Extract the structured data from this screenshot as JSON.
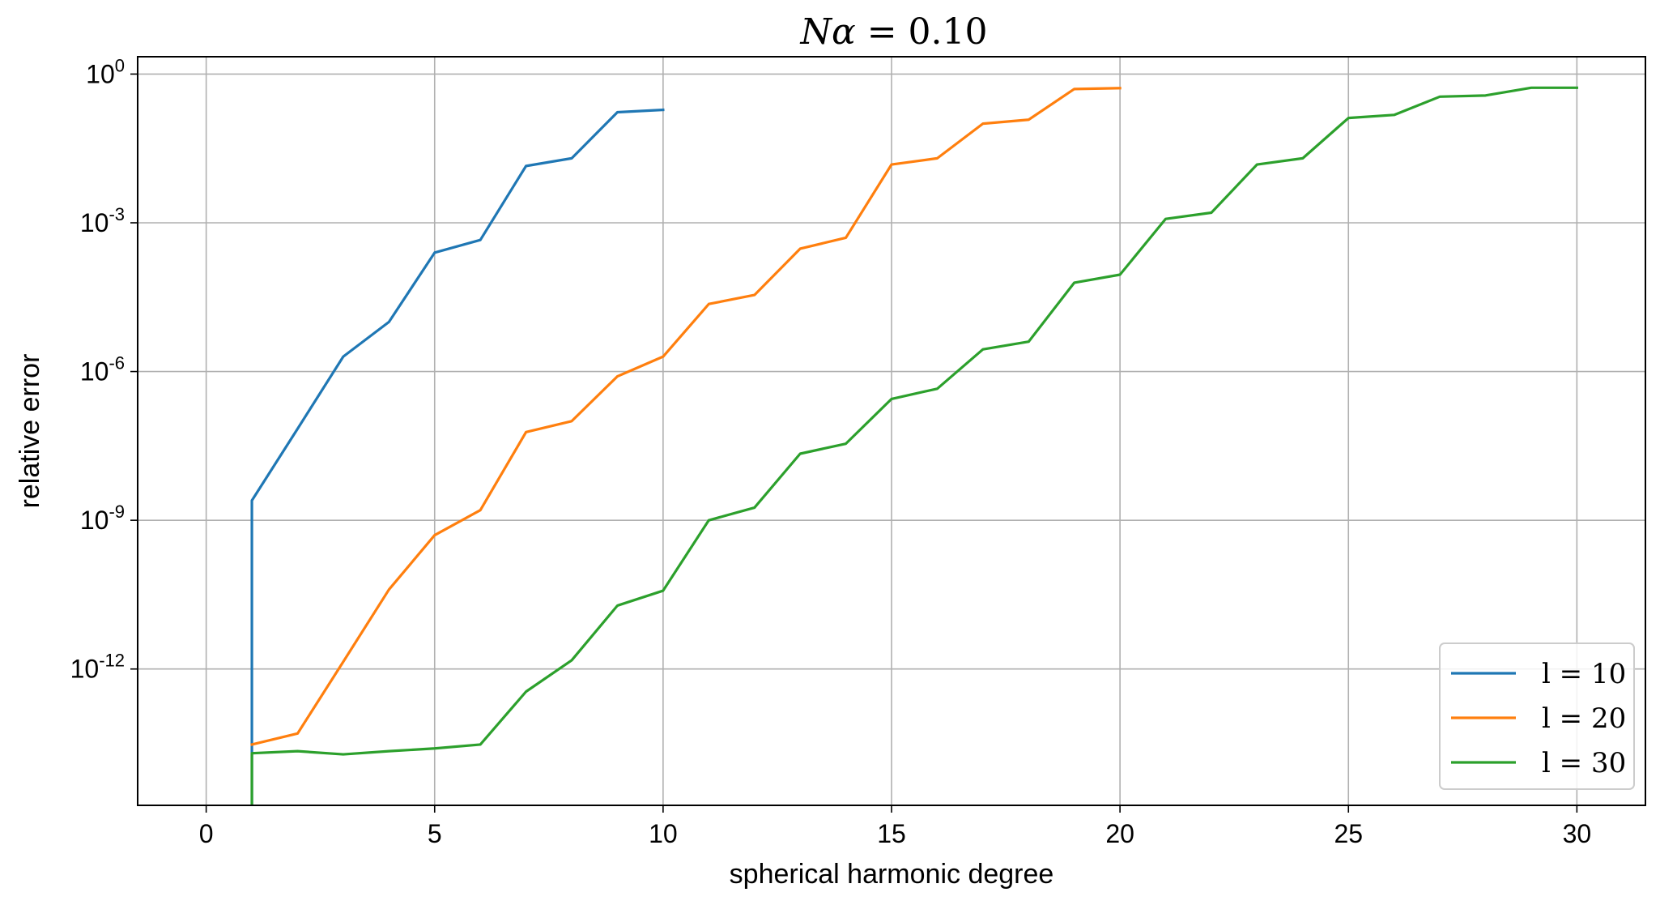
{
  "chart_data": {
    "type": "line",
    "title": "Nα = 0.10",
    "xlabel": "spherical harmonic degree",
    "ylabel": "relative error",
    "xlim": [
      -1.5,
      31.5
    ],
    "xticks": [
      0,
      5,
      10,
      15,
      20,
      25,
      30
    ],
    "y_scale": "log",
    "y_log_range": [
      -14.75,
      0.35
    ],
    "yticks": [
      {
        "base": "10",
        "exp": "0"
      },
      {
        "base": "10",
        "exp": "-3"
      },
      {
        "base": "10",
        "exp": "-6"
      },
      {
        "base": "10",
        "exp": "-9"
      },
      {
        "base": "10",
        "exp": "-12"
      }
    ],
    "grid": true,
    "legend_position": "lower-right",
    "series": [
      {
        "name": "l = 10",
        "color": "#1f77b4",
        "x": [
          1,
          1,
          2,
          3,
          4,
          5,
          6,
          7,
          8,
          9,
          10
        ],
        "y": [
          1e-15,
          2.5e-09,
          7e-08,
          2e-06,
          1e-05,
          0.00025,
          0.00045,
          0.014,
          0.02,
          0.17,
          0.19
        ]
      },
      {
        "name": "l = 20",
        "color": "#ff7f0e",
        "x": [
          1,
          2,
          3,
          4,
          5,
          6,
          7,
          8,
          9,
          10,
          11,
          12,
          13,
          14,
          15,
          16,
          17,
          18,
          19,
          20
        ],
        "y": [
          3e-14,
          5e-14,
          1.4e-12,
          4e-11,
          5e-10,
          1.6e-09,
          6e-08,
          1e-07,
          8e-07,
          2e-06,
          2.3e-05,
          3.5e-05,
          0.0003,
          0.0005,
          0.015,
          0.02,
          0.1,
          0.12,
          0.5,
          0.52
        ]
      },
      {
        "name": "l = 30",
        "color": "#2ca02c",
        "x": [
          1,
          1,
          2,
          3,
          4,
          5,
          6,
          7,
          8,
          9,
          10,
          11,
          12,
          13,
          14,
          15,
          16,
          17,
          18,
          19,
          20,
          21,
          22,
          23,
          24,
          25,
          26,
          27,
          28,
          29,
          30
        ],
        "y": [
          1e-15,
          2e-14,
          2.2e-14,
          1.9e-14,
          2.2e-14,
          2.5e-14,
          3e-14,
          3.5e-13,
          1.5e-12,
          1.9e-11,
          3.8e-11,
          1e-09,
          1.8e-09,
          2.2e-08,
          3.5e-08,
          2.8e-07,
          4.5e-07,
          2.8e-06,
          4e-06,
          6.2e-05,
          9e-05,
          0.0012,
          0.0016,
          0.015,
          0.02,
          0.13,
          0.15,
          0.35,
          0.37,
          0.53,
          0.53
        ]
      }
    ]
  }
}
